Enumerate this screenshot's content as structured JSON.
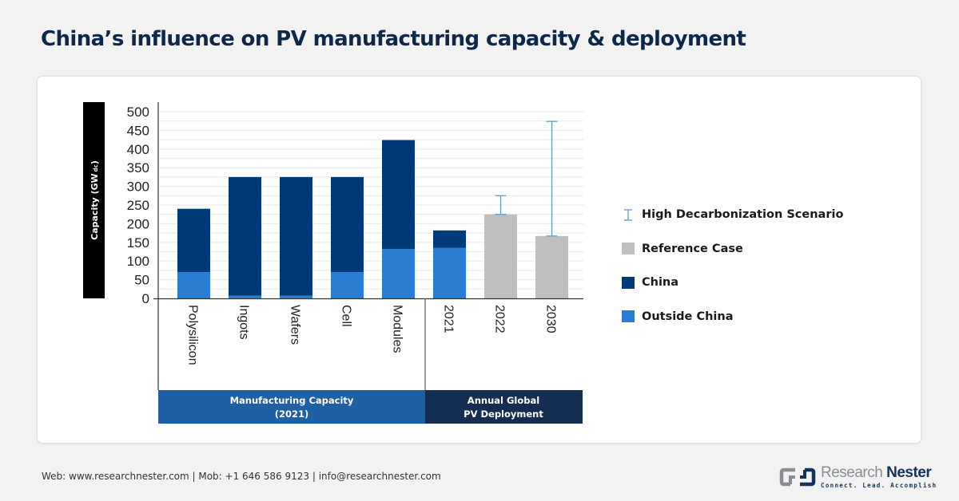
{
  "header": {
    "title": "China’s influence on PV manufacturing capacity & deployment"
  },
  "chart_data": {
    "type": "bar",
    "stacked": true,
    "title": "China’s influence on PV manufacturing capacity & deployment",
    "ylabel": "Capacity (GW dc)",
    "ylabel_main": "Capacity (GW",
    "ylabel_sub": "dc",
    "ylabel_close": ")",
    "ylim": [
      0,
      500
    ],
    "yticks": [
      0,
      50,
      100,
      150,
      200,
      250,
      300,
      350,
      400,
      450,
      500
    ],
    "ytick_labels": [
      "0",
      "50",
      "100",
      "150",
      "200",
      "250",
      "300",
      "350",
      "400",
      "450",
      "500"
    ],
    "minor_grid_step": 25,
    "grid": true,
    "categories": [
      "Polysilicon",
      "Ingots",
      "Wafers",
      "Cell",
      "Modules",
      "2021",
      "2022",
      "2030"
    ],
    "groups": [
      {
        "label_line1": "Manufacturing Capacity",
        "label_line2": "(2021)",
        "categories": [
          "Polysilicon",
          "Ingots",
          "Wafers",
          "Cell",
          "Modules"
        ],
        "color": "#1f5fa3"
      },
      {
        "label_line1": "Annual Global",
        "label_line2": "PV Deployment",
        "categories": [
          "2021",
          "2022",
          "2030"
        ],
        "color": "#142d50"
      }
    ],
    "series": [
      {
        "name": "Outside China",
        "color": "#2b7cd3",
        "values": [
          70,
          7,
          7,
          70,
          132,
          135,
          null,
          null
        ]
      },
      {
        "name": "China",
        "color": "#003a78",
        "values": [
          170,
          318,
          318,
          255,
          292,
          47,
          null,
          null
        ]
      },
      {
        "name": "Reference Case",
        "color": "#bfbfbf",
        "values": [
          null,
          null,
          null,
          null,
          null,
          null,
          225,
          167
        ]
      },
      {
        "name": "High Decarbonization Scenario",
        "type": "error_bar",
        "color": "#5b9bd5",
        "values": [
          null,
          null,
          null,
          null,
          null,
          null,
          275,
          474
        ]
      }
    ],
    "legend": {
      "position": "right",
      "items": [
        {
          "label": "High Decarbonization Scenario",
          "symbol": "errorbar-icon",
          "color": "#5b9bd5"
        },
        {
          "label": "Reference Case",
          "symbol": "square",
          "color": "#bfbfbf"
        },
        {
          "label": "China",
          "symbol": "square",
          "color": "#003a78"
        },
        {
          "label": "Outside China",
          "symbol": "square",
          "color": "#2b7cd3"
        }
      ]
    }
  },
  "footer": {
    "contact": "Web: www.researchnester.com | Mob: +1 646 586 9123 | info@researchnester.com"
  },
  "logo": {
    "name_part1": "Research",
    "name_part2": "Nester",
    "tagline": "Connect. Lead. Accomplish"
  }
}
